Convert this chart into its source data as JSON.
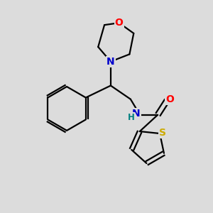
{
  "bg_color": "#dcdcdc",
  "bond_color": "#000000",
  "atom_colors": {
    "O": "#ff0000",
    "N": "#0000cc",
    "S": "#ccaa00",
    "H": "#008080",
    "C": "#000000"
  },
  "line_width": 1.6,
  "figsize": [
    3.0,
    3.0
  ],
  "dpi": 100
}
